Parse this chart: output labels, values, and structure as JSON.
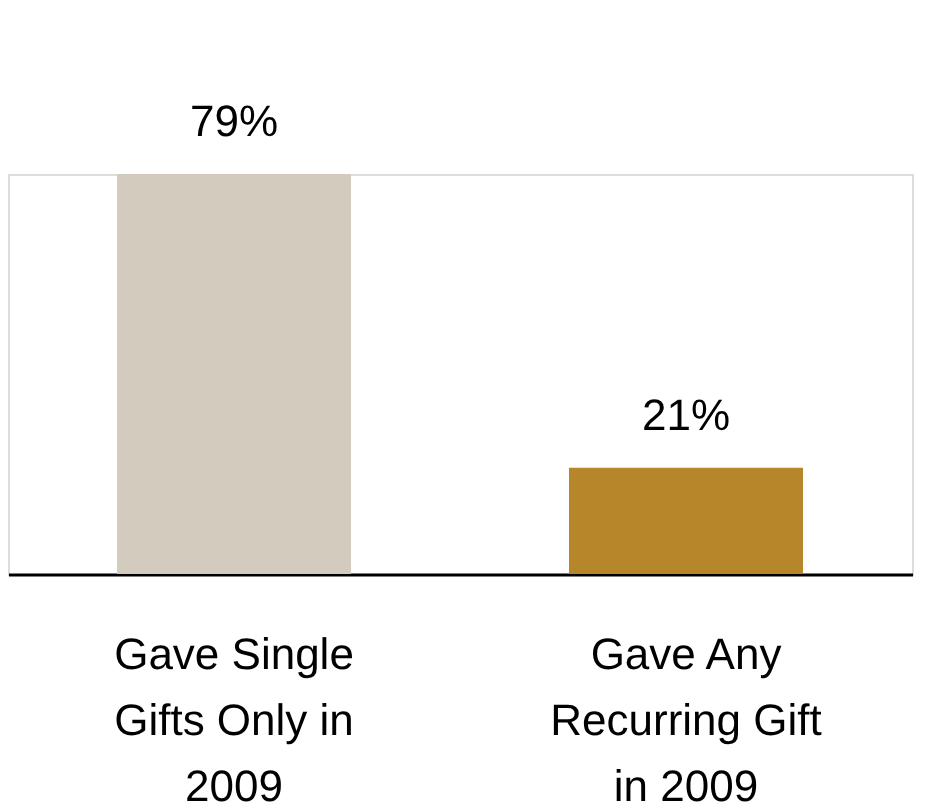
{
  "chart_data": {
    "type": "bar",
    "categories": [
      "Gave Single Gifts Only in 2009",
      "Gave Any Recurring Gift in 2009"
    ],
    "values": [
      79,
      21
    ],
    "value_labels": [
      "79%",
      "21%"
    ],
    "colors": [
      "#d3cbbd",
      "#b5862a"
    ]
  }
}
